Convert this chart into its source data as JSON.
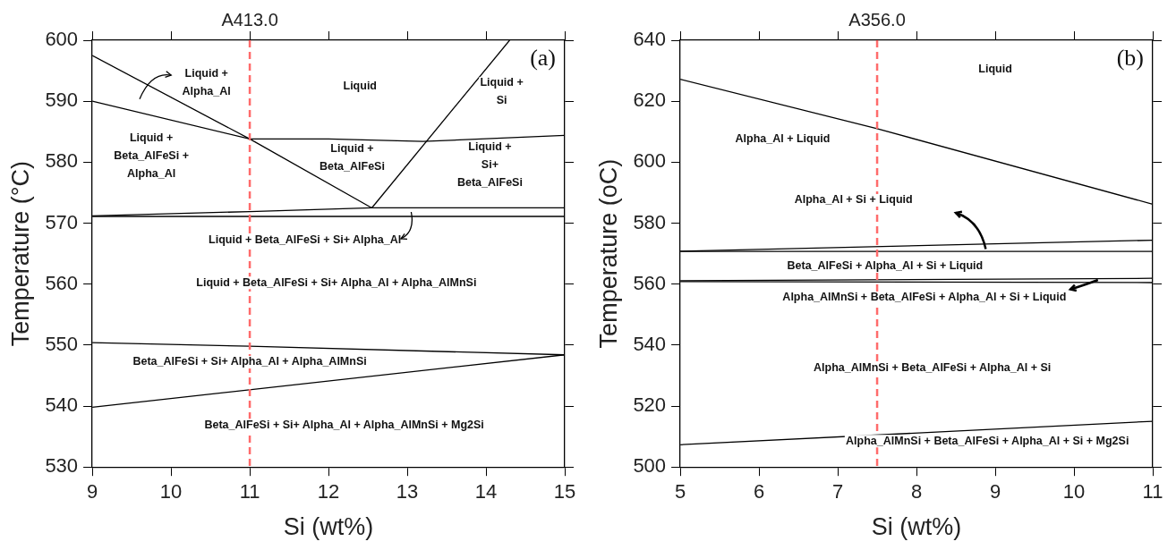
{
  "chart_data": [
    {
      "type": "line",
      "xlabel": "Si (wt%)",
      "ylabel": "Temperature (°C)",
      "xlim": [
        9,
        15
      ],
      "xticks": [
        9,
        10,
        11,
        12,
        13,
        14,
        15
      ],
      "ylim": [
        530,
        600
      ],
      "yticks": [
        530,
        540,
        550,
        560,
        570,
        580,
        590,
        600
      ],
      "grid": false,
      "legend": false,
      "marker": "none",
      "line_style": "solid",
      "series": [
        {
          "color": "#000000",
          "x": [
            9,
            11,
            12.55
          ],
          "values": [
            597.5,
            583.8,
            572.5
          ]
        },
        {
          "color": "#000000",
          "x": [
            9,
            11,
            12,
            13.2,
            15
          ],
          "values": [
            590,
            583.8,
            583.8,
            583.4,
            584.4
          ]
        },
        {
          "color": "#000000",
          "x": [
            12.55,
            14.3
          ],
          "values": [
            572.5,
            600
          ]
        },
        {
          "color": "#000000",
          "x": [
            9,
            11,
            12.55,
            15
          ],
          "values": [
            571.2,
            571.9,
            572.5,
            572.5
          ]
        },
        {
          "color": "#000000",
          "x": [
            9,
            15
          ],
          "values": [
            571.1,
            571.1
          ]
        },
        {
          "color": "#000000",
          "x": [
            9,
            11,
            15
          ],
          "values": [
            550.4,
            549.8,
            548.4
          ]
        },
        {
          "color": "#000000",
          "x": [
            9,
            15
          ],
          "values": [
            539.8,
            548.4
          ]
        }
      ],
      "ref_lines": [
        {
          "axis": "x",
          "value": 11,
          "label": "A413.0",
          "color": "#ff6b6b",
          "line_style": "dashed"
        }
      ],
      "annotations": [
        "(a)",
        "Liquid +\nAlpha_Al",
        "Liquid",
        "Liquid +\nSi",
        "Liquid +\nBeta_AlFeSi +\nAlpha_Al",
        "Liquid +\nBeta_AlFeSi",
        "Liquid +\nSi+\nBeta_AlFeSi",
        {
          "text": "Liquid + Beta_AlFeSi + Si+ Alpha_Al",
          "x": 13.05,
          "y": 571.8
        },
        "Liquid + Beta_AlFeSi + Si+ Alpha_Al + Alpha_AlMnSi",
        "Beta_AlFeSi + Si+ Alpha_Al + Alpha_AlMnSi",
        "Beta_AlFeSi + Si+ Alpha_Al + Alpha_AlMnSi + Mg2Si"
      ]
    },
    {
      "type": "line",
      "xlabel": "Si (wt%)",
      "ylabel": "Temperature (oC)",
      "xlim": [
        5,
        11
      ],
      "xticks": [
        5,
        6,
        7,
        8,
        9,
        10,
        11
      ],
      "ylim": [
        500,
        640
      ],
      "yticks": [
        500,
        520,
        540,
        560,
        580,
        600,
        620,
        640
      ],
      "grid": false,
      "legend": false,
      "marker": "none",
      "line_style": "solid",
      "series": [
        {
          "color": "#000000",
          "x": [
            5,
            7.5,
            11
          ],
          "values": [
            627.2,
            611,
            586.2
          ]
        },
        {
          "color": "#000000",
          "x": [
            5,
            11
          ],
          "values": [
            570.8,
            574.4
          ]
        },
        {
          "color": "#000000",
          "x": [
            5,
            11
          ],
          "values": [
            570.7,
            570.7
          ]
        },
        {
          "color": "#000000",
          "x": [
            5,
            11
          ],
          "values": [
            561.1,
            561.9
          ]
        },
        {
          "color": "#000000",
          "x": [
            5,
            11
          ],
          "values": [
            560.8,
            560.5
          ]
        },
        {
          "color": "#000000",
          "x": [
            5,
            11
          ],
          "values": [
            507.3,
            515
          ]
        }
      ],
      "ref_lines": [
        {
          "axis": "x",
          "value": 7.5,
          "label": "A356.0",
          "color": "#ff6b6b",
          "line_style": "dashed"
        }
      ],
      "annotations": [
        "(b)",
        "Liquid",
        "Alpha_Al + Liquid",
        "Alpha_Al + Si + Liquid",
        "Beta_AlFeSi + Alpha_Al + Si + Liquid",
        {
          "text": "Alpha_AlMnSi + Beta_AlFeSi + Alpha_Al + Si + Liquid",
          "x": 10.3,
          "y": 561.3
        },
        "Alpha_AlMnSi + Beta_AlFeSi + Alpha_Al + Si",
        "Alpha_AlMnSi + Beta_AlFeSi + Alpha_Al + Si + Mg2Si"
      ]
    }
  ]
}
